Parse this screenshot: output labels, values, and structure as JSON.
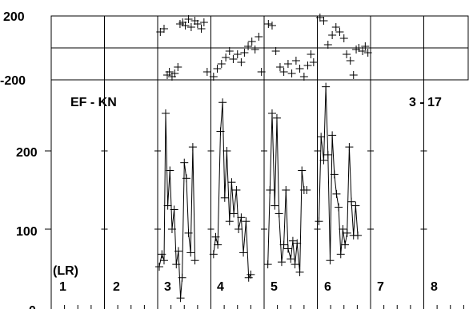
{
  "chart_data": {
    "type": "scatter",
    "top_panel": {
      "type": "scatter",
      "y_ticks": [
        "200",
        "-200"
      ],
      "ylim": [
        -200,
        200
      ],
      "zero_line": true,
      "points": [
        {
          "x": 3.05,
          "y": 100
        },
        {
          "x": 3.12,
          "y": 120
        },
        {
          "x": 3.18,
          "y": -170
        },
        {
          "x": 3.22,
          "y": -150
        },
        {
          "x": 3.27,
          "y": -180
        },
        {
          "x": 3.32,
          "y": -160
        },
        {
          "x": 3.38,
          "y": -120
        },
        {
          "x": 3.42,
          "y": 150
        },
        {
          "x": 3.47,
          "y": 160
        },
        {
          "x": 3.52,
          "y": 140
        },
        {
          "x": 3.58,
          "y": 180
        },
        {
          "x": 3.63,
          "y": 130
        },
        {
          "x": 3.7,
          "y": 170
        },
        {
          "x": 3.75,
          "y": 150
        },
        {
          "x": 3.82,
          "y": 120
        },
        {
          "x": 3.87,
          "y": 160
        },
        {
          "x": 3.93,
          "y": -150
        },
        {
          "x": 4.05,
          "y": -180
        },
        {
          "x": 4.12,
          "y": -130
        },
        {
          "x": 4.2,
          "y": -100
        },
        {
          "x": 4.28,
          "y": -60
        },
        {
          "x": 4.35,
          "y": -20
        },
        {
          "x": 4.42,
          "y": -70
        },
        {
          "x": 4.5,
          "y": -40
        },
        {
          "x": 4.57,
          "y": -90
        },
        {
          "x": 4.63,
          "y": -30
        },
        {
          "x": 4.7,
          "y": 10
        },
        {
          "x": 4.77,
          "y": 40
        },
        {
          "x": 4.83,
          "y": -10
        },
        {
          "x": 4.9,
          "y": 70
        },
        {
          "x": 4.95,
          "y": -150
        },
        {
          "x": 5.08,
          "y": 150
        },
        {
          "x": 5.15,
          "y": 140
        },
        {
          "x": 5.22,
          "y": -20
        },
        {
          "x": 5.3,
          "y": -120
        },
        {
          "x": 5.37,
          "y": -150
        },
        {
          "x": 5.45,
          "y": -100
        },
        {
          "x": 5.52,
          "y": -160
        },
        {
          "x": 5.6,
          "y": -80
        },
        {
          "x": 5.67,
          "y": -130
        },
        {
          "x": 5.75,
          "y": -180
        },
        {
          "x": 5.82,
          "y": -110
        },
        {
          "x": 5.88,
          "y": -40
        },
        {
          "x": 5.93,
          "y": -90
        },
        {
          "x": 6.05,
          "y": 190
        },
        {
          "x": 6.12,
          "y": 170
        },
        {
          "x": 6.2,
          "y": 20
        },
        {
          "x": 6.28,
          "y": 80
        },
        {
          "x": 6.35,
          "y": 130
        },
        {
          "x": 6.42,
          "y": 100
        },
        {
          "x": 6.5,
          "y": 60
        },
        {
          "x": 6.55,
          "y": -40
        },
        {
          "x": 6.62,
          "y": -80
        },
        {
          "x": 6.68,
          "y": -170
        },
        {
          "x": 6.73,
          "y": -10
        },
        {
          "x": 6.78,
          "y": 0
        },
        {
          "x": 6.85,
          "y": -20
        },
        {
          "x": 6.9,
          "y": 10
        },
        {
          "x": 6.95,
          "y": -30
        }
      ]
    },
    "bottom_panel": {
      "type": "line",
      "y_ticks": [
        "200",
        "100",
        "0"
      ],
      "ylim": [
        0,
        270
      ],
      "values": [
        {
          "x": 3.03,
          "y": 52
        },
        {
          "x": 3.08,
          "y": 68
        },
        {
          "x": 3.12,
          "y": 60
        },
        {
          "x": 3.15,
          "y": 248
        },
        {
          "x": 3.19,
          "y": 130
        },
        {
          "x": 3.23,
          "y": 175
        },
        {
          "x": 3.27,
          "y": 100
        },
        {
          "x": 3.31,
          "y": 125
        },
        {
          "x": 3.35,
          "y": 55
        },
        {
          "x": 3.39,
          "y": 72
        },
        {
          "x": 3.43,
          "y": 12
        },
        {
          "x": 3.46,
          "y": 38
        },
        {
          "x": 3.5,
          "y": 185
        },
        {
          "x": 3.54,
          "y": 165
        },
        {
          "x": 3.58,
          "y": 95
        },
        {
          "x": 3.62,
          "y": 70
        },
        {
          "x": 3.66,
          "y": 205
        },
        {
          "x": 3.7,
          "y": 60
        },
        {
          "x": 4.05,
          "y": 68
        },
        {
          "x": 4.09,
          "y": 90
        },
        {
          "x": 4.13,
          "y": 80
        },
        {
          "x": 4.18,
          "y": 225
        },
        {
          "x": 4.22,
          "y": 262
        },
        {
          "x": 4.26,
          "y": 140
        },
        {
          "x": 4.3,
          "y": 200
        },
        {
          "x": 4.35,
          "y": 110
        },
        {
          "x": 4.39,
          "y": 160
        },
        {
          "x": 4.43,
          "y": 120
        },
        {
          "x": 4.48,
          "y": 150
        },
        {
          "x": 4.52,
          "y": 100
        },
        {
          "x": 4.57,
          "y": 115
        },
        {
          "x": 4.61,
          "y": 70
        },
        {
          "x": 4.66,
          "y": 110
        },
        {
          "x": 4.71,
          "y": 38
        },
        {
          "x": 4.75,
          "y": 42
        },
        {
          "x": 5.07,
          "y": 55
        },
        {
          "x": 5.11,
          "y": 150
        },
        {
          "x": 5.15,
          "y": 248
        },
        {
          "x": 5.2,
          "y": 130
        },
        {
          "x": 5.24,
          "y": 242
        },
        {
          "x": 5.28,
          "y": 120
        },
        {
          "x": 5.33,
          "y": 58
        },
        {
          "x": 5.37,
          "y": 80
        },
        {
          "x": 5.41,
          "y": 150
        },
        {
          "x": 5.45,
          "y": 75
        },
        {
          "x": 5.5,
          "y": 62
        },
        {
          "x": 5.54,
          "y": 85
        },
        {
          "x": 5.58,
          "y": 55
        },
        {
          "x": 5.62,
          "y": 82
        },
        {
          "x": 5.67,
          "y": 45
        },
        {
          "x": 5.71,
          "y": 175
        },
        {
          "x": 5.75,
          "y": 150
        },
        {
          "x": 5.8,
          "y": 150
        },
        {
          "x": 6.03,
          "y": 110
        },
        {
          "x": 6.07,
          "y": 218
        },
        {
          "x": 6.12,
          "y": 188
        },
        {
          "x": 6.16,
          "y": 282
        },
        {
          "x": 6.2,
          "y": 195
        },
        {
          "x": 6.24,
          "y": 60
        },
        {
          "x": 6.28,
          "y": 220
        },
        {
          "x": 6.32,
          "y": 170
        },
        {
          "x": 6.36,
          "y": 145
        },
        {
          "x": 6.4,
          "y": 128
        },
        {
          "x": 6.44,
          "y": 68
        },
        {
          "x": 6.48,
          "y": 100
        },
        {
          "x": 6.52,
          "y": 80
        },
        {
          "x": 6.56,
          "y": 95
        },
        {
          "x": 6.6,
          "y": 205
        },
        {
          "x": 6.64,
          "y": 135
        },
        {
          "x": 6.68,
          "y": 92
        },
        {
          "x": 6.72,
          "y": 130
        },
        {
          "x": 6.76,
          "y": 92
        }
      ]
    },
    "annotations": {
      "left": "EF - KN",
      "right": "3 - 17",
      "group_label": "(LR)"
    },
    "column_labels": [
      "1",
      "2",
      "3",
      "4",
      "5",
      "6",
      "7",
      "8"
    ]
  }
}
